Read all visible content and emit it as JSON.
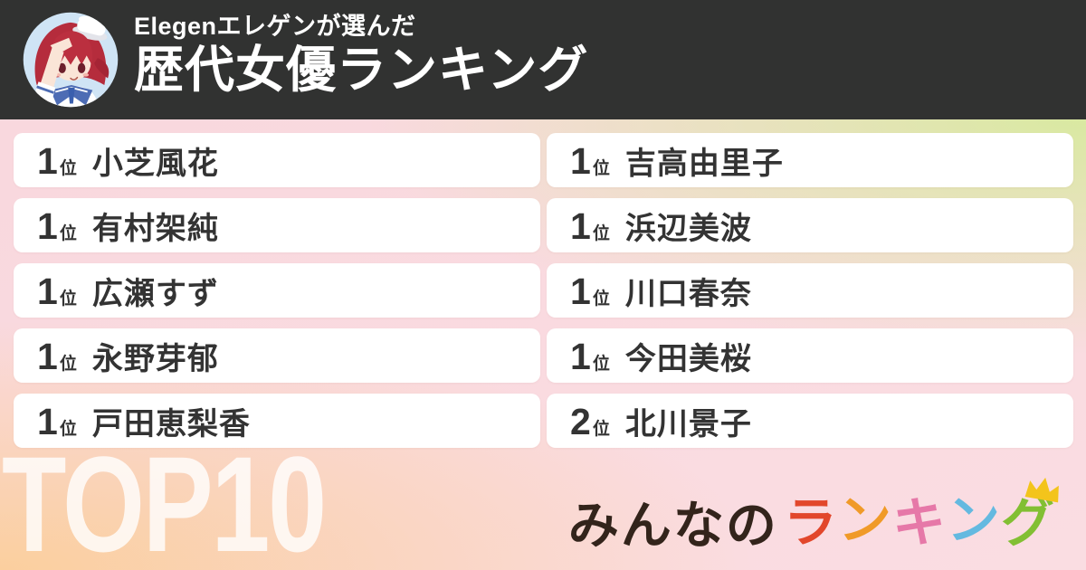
{
  "header": {
    "subtitle": "Elegenエレゲンが選んだ",
    "title": "歴代女優ランキング",
    "bg_color": "#313231",
    "text_color": "#ffffff",
    "avatar": "anime-girl-salute-avatar"
  },
  "ranking": {
    "columns": [
      {
        "items": [
          {
            "rank": "1",
            "suffix": "位",
            "name": "小芝風花"
          },
          {
            "rank": "1",
            "suffix": "位",
            "name": "有村架純"
          },
          {
            "rank": "1",
            "suffix": "位",
            "name": "広瀬すず"
          },
          {
            "rank": "1",
            "suffix": "位",
            "name": "永野芽郁"
          },
          {
            "rank": "1",
            "suffix": "位",
            "name": "戸田恵梨香"
          }
        ]
      },
      {
        "items": [
          {
            "rank": "1",
            "suffix": "位",
            "name": "吉高由里子"
          },
          {
            "rank": "1",
            "suffix": "位",
            "name": "浜辺美波"
          },
          {
            "rank": "1",
            "suffix": "位",
            "name": "川口春奈"
          },
          {
            "rank": "1",
            "suffix": "位",
            "name": "今田美桜"
          },
          {
            "rank": "2",
            "suffix": "位",
            "name": "北川景子"
          }
        ]
      }
    ],
    "card_text_color": "#333333",
    "card_bg_color": "#ffffff"
  },
  "watermark": {
    "text": "TOP10",
    "color": "rgba(255,255,255,0.8)"
  },
  "logo": {
    "prefix": "みんなの",
    "prefix_color": "#33241b",
    "letters": [
      {
        "char": "ラ",
        "color": "#e2472b"
      },
      {
        "char": "ン",
        "color": "#f09a28"
      },
      {
        "char": "キ",
        "color": "#e678a8"
      },
      {
        "char": "ン",
        "color": "#64b9e0"
      },
      {
        "char": "グ",
        "color": "#82bf33"
      }
    ],
    "crown_color": "#f3c41b"
  },
  "background": {
    "pink_top_left": "#f9d8de",
    "green_top_right": "#d9e9a1",
    "peach_bottom_left": "#fbcf9e",
    "pink_bottom_right": "#fadde2"
  }
}
